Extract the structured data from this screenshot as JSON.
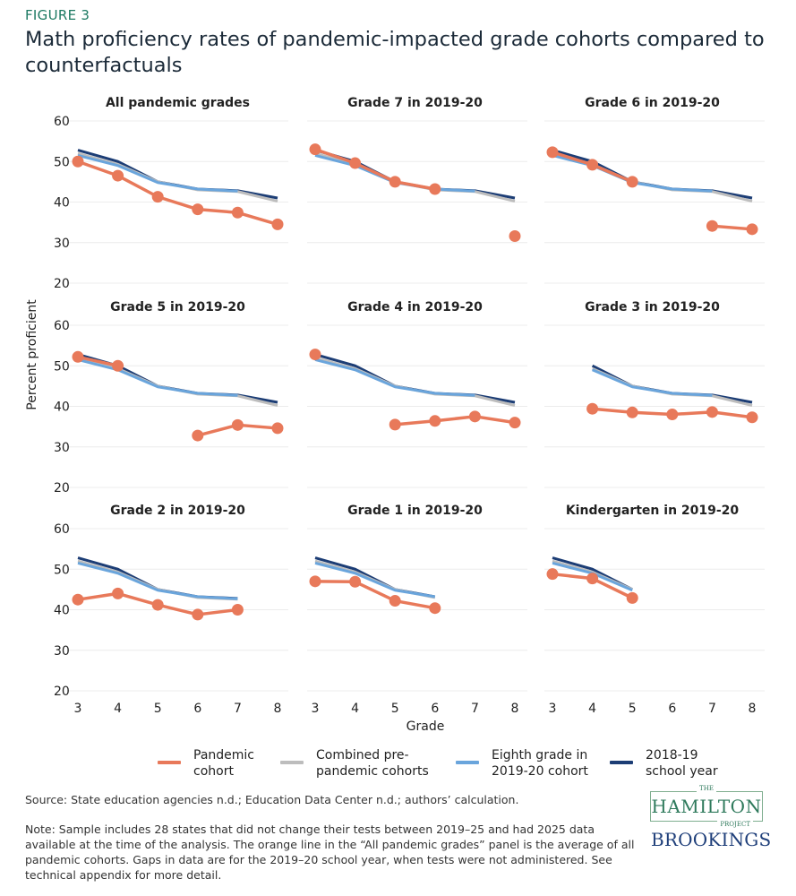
{
  "figure_label": "FIGURE 3",
  "title": "Math proficiency rates of pandemic-impacted grade cohorts compared to counterfactuals",
  "colors": {
    "pandemic": "#e8795a",
    "combined": "#bdbdbd",
    "eighth": "#6aa5dc",
    "sy1819": "#1c3d75",
    "grid": "#ececec"
  },
  "chart_data": {
    "type": "line",
    "ylabel": "Percent proficient",
    "xlabel": "Grade",
    "x": [
      3,
      4,
      5,
      6,
      7,
      8
    ],
    "ylim": [
      20,
      60
    ],
    "yticks": [
      "60",
      "50",
      "40",
      "30",
      "20"
    ],
    "xticks": [
      "3",
      "4",
      "5",
      "6",
      "7",
      "8"
    ],
    "grid": true,
    "legend_position": "bottom",
    "legend": [
      {
        "key": "pandemic",
        "label": "Pandemic cohort"
      },
      {
        "key": "combined",
        "label": "Combined pre-pandemic cohorts"
      },
      {
        "key": "eighth",
        "label": "Eighth grade in 2019-20 cohort"
      },
      {
        "key": "sy1819",
        "label": "2018-19 school year"
      }
    ],
    "panels": [
      {
        "title": "All pandemic grades",
        "sy1819": [
          52.8,
          50,
          45,
          43.2,
          42.8,
          41
        ],
        "combined": [
          52,
          49.3,
          45,
          43,
          42.6,
          40.2
        ],
        "eighth": [
          51.5,
          49,
          44.8,
          43.2,
          42.7,
          null
        ],
        "pandemic": [
          50,
          46.5,
          41.3,
          38.2,
          37.4,
          34.5
        ]
      },
      {
        "title": "Grade 7 in 2019-20",
        "sy1819": [
          52.8,
          50,
          45,
          43.2,
          42.8,
          41
        ],
        "combined": [
          52,
          49.3,
          45,
          43,
          42.6,
          40.2
        ],
        "eighth": [
          51.5,
          49,
          44.8,
          43.2,
          42.7,
          null
        ],
        "pandemic": [
          53,
          49.6,
          45,
          43.2,
          null,
          31.6
        ]
      },
      {
        "title": "Grade 6 in 2019-20",
        "sy1819": [
          52.8,
          50,
          45,
          43.2,
          42.8,
          41
        ],
        "combined": [
          52,
          49.3,
          45,
          43,
          42.6,
          40.2
        ],
        "eighth": [
          51.5,
          49,
          44.8,
          43.2,
          42.7,
          null
        ],
        "pandemic": [
          52.3,
          49.2,
          45,
          null,
          34.1,
          33.3
        ]
      },
      {
        "title": "Grade 5 in 2019-20",
        "sy1819": [
          52.8,
          50,
          45,
          43.2,
          42.8,
          41
        ],
        "combined": [
          52,
          49.3,
          45,
          43,
          42.6,
          40.2
        ],
        "eighth": [
          51.5,
          49,
          44.8,
          43.2,
          42.7,
          null
        ],
        "pandemic": [
          52.2,
          50,
          null,
          32.8,
          35.4,
          34.6
        ]
      },
      {
        "title": "Grade 4 in 2019-20",
        "sy1819": [
          52.8,
          50,
          45,
          43.2,
          42.8,
          41
        ],
        "combined": [
          52,
          49.3,
          45,
          43,
          42.6,
          40.2
        ],
        "eighth": [
          51.5,
          49,
          44.8,
          43.2,
          42.7,
          null
        ],
        "pandemic": [
          52.8,
          null,
          35.5,
          36.4,
          37.5,
          36
        ]
      },
      {
        "title": "Grade 3 in 2019-20",
        "sy1819": [
          null,
          50,
          45,
          43.2,
          42.8,
          41
        ],
        "combined": [
          null,
          49.3,
          45,
          43,
          42.6,
          40.2
        ],
        "eighth": [
          null,
          49,
          44.8,
          43.2,
          42.7,
          null
        ],
        "pandemic": [
          null,
          39.4,
          38.5,
          38,
          38.6,
          37.3
        ]
      },
      {
        "title": "Grade 2 in 2019-20",
        "sy1819": [
          52.8,
          50,
          45,
          43.2,
          42.8,
          null
        ],
        "combined": [
          52,
          49.3,
          45,
          43,
          42.6,
          null
        ],
        "eighth": [
          51.5,
          49,
          44.8,
          43.2,
          42.7,
          null
        ],
        "pandemic": [
          42.5,
          44,
          41.2,
          38.8,
          40,
          null
        ]
      },
      {
        "title": "Grade 1 in 2019-20",
        "sy1819": [
          52.8,
          50,
          45,
          43.2,
          null,
          null
        ],
        "combined": [
          52,
          49.3,
          45,
          43,
          null,
          null
        ],
        "eighth": [
          51.5,
          49,
          44.8,
          43.2,
          null,
          null
        ],
        "pandemic": [
          47,
          46.9,
          42.2,
          40.4,
          null,
          null
        ]
      },
      {
        "title": "Kindergarten in 2019-20",
        "sy1819": [
          52.8,
          50,
          45,
          null,
          null,
          null
        ],
        "combined": [
          52,
          49.3,
          45,
          null,
          null,
          null
        ],
        "eighth": [
          51.5,
          49,
          44.8,
          null,
          null,
          null
        ],
        "pandemic": [
          48.8,
          47.7,
          42.9,
          null,
          null,
          null
        ]
      }
    ]
  },
  "source": "Source: State education agencies n.d.; Education Data Center n.d.; authors’ calculation.",
  "note": "Note: Sample includes 28 states that did not change their tests between 2019–25 and had 2025 data available at the time of the analysis. The orange line in the “All pandemic grades” panel is the average of all pandemic cohorts. Gaps in data are for the 2019–20 school year, when tests were not administered. See technical appendix for more detail.",
  "logos": {
    "hamilton_top": "THE",
    "hamilton": "HAMILTON",
    "hamilton_bottom": "PROJECT",
    "brookings": "BROOKINGS"
  }
}
